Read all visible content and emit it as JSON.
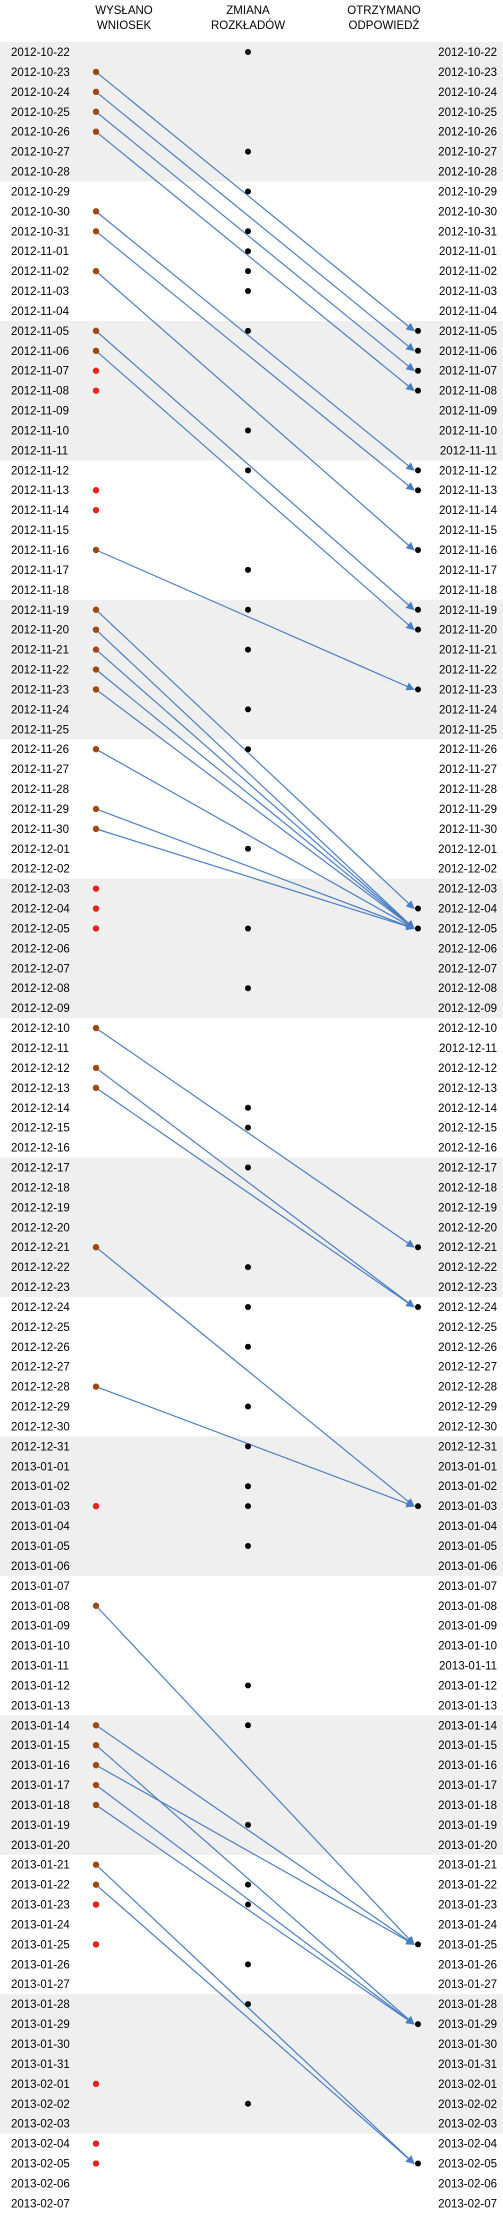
{
  "chart_data": {
    "type": "scatter",
    "headers": {
      "sent": [
        "WYSŁANO",
        "WNIOSEK"
      ],
      "change": [
        "ZMIANA",
        "ROZKŁADÓW"
      ],
      "received": [
        "OTRZYMANO",
        "ODPOWIEDŹ"
      ]
    },
    "start_date": "2012-10-22",
    "end_date": "2013-02-07",
    "shaded_weeks": [
      "2012-10-22",
      "2012-11-05",
      "2012-11-19",
      "2012-12-03",
      "2012-12-17",
      "2012-12-31",
      "2013-01-14",
      "2013-01-28"
    ],
    "sent_with_reply": [
      "2012-10-23",
      "2012-10-24",
      "2012-10-25",
      "2012-10-26",
      "2012-10-30",
      "2012-10-31",
      "2012-11-02",
      "2012-11-05",
      "2012-11-06",
      "2012-11-16",
      "2012-11-19",
      "2012-11-20",
      "2012-11-21",
      "2012-11-22",
      "2012-11-23",
      "2012-11-26",
      "2012-11-29",
      "2012-11-30",
      "2012-12-10",
      "2012-12-12",
      "2012-12-13",
      "2012-12-21",
      "2012-12-28",
      "2013-01-08",
      "2013-01-14",
      "2013-01-15",
      "2013-01-16",
      "2013-01-17",
      "2013-01-18",
      "2013-01-21",
      "2013-01-22"
    ],
    "sent_without_reply": [
      "2012-11-07",
      "2012-11-08",
      "2012-11-13",
      "2012-11-14",
      "2012-12-03",
      "2012-12-04",
      "2012-12-05",
      "2013-01-03",
      "2013-01-23",
      "2013-01-25",
      "2013-02-01",
      "2013-02-04",
      "2013-02-05"
    ],
    "schedule_changes": [
      "2012-10-22",
      "2012-10-27",
      "2012-10-29",
      "2012-10-31",
      "2012-11-01",
      "2012-11-02",
      "2012-11-03",
      "2012-11-05",
      "2012-11-10",
      "2012-11-12",
      "2012-11-17",
      "2012-11-19",
      "2012-11-21",
      "2012-11-24",
      "2012-11-26",
      "2012-12-01",
      "2012-12-05",
      "2012-12-08",
      "2012-12-14",
      "2012-12-15",
      "2012-12-17",
      "2012-12-22",
      "2012-12-24",
      "2012-12-26",
      "2012-12-29",
      "2012-12-31",
      "2013-01-02",
      "2013-01-03",
      "2013-01-05",
      "2013-01-12",
      "2013-01-14",
      "2013-01-19",
      "2013-01-22",
      "2013-01-23",
      "2013-01-26",
      "2013-01-28",
      "2013-02-02"
    ],
    "replies_received": [
      "2012-11-05",
      "2012-11-06",
      "2012-11-07",
      "2012-11-08",
      "2012-11-12",
      "2012-11-13",
      "2012-11-16",
      "2012-11-19",
      "2012-11-20",
      "2012-11-23",
      "2012-12-04",
      "2012-12-05",
      "2012-12-21",
      "2012-12-24",
      "2013-01-03",
      "2013-01-25",
      "2013-01-29",
      "2013-02-05"
    ],
    "links": [
      [
        "2012-10-23",
        "2012-11-05"
      ],
      [
        "2012-10-24",
        "2012-11-06"
      ],
      [
        "2012-10-25",
        "2012-11-07"
      ],
      [
        "2012-10-26",
        "2012-11-08"
      ],
      [
        "2012-10-30",
        "2012-11-12"
      ],
      [
        "2012-10-31",
        "2012-11-13"
      ],
      [
        "2012-11-02",
        "2012-11-16"
      ],
      [
        "2012-11-05",
        "2012-11-19"
      ],
      [
        "2012-11-06",
        "2012-11-20"
      ],
      [
        "2012-11-16",
        "2012-11-23"
      ],
      [
        "2012-11-19",
        "2012-12-04"
      ],
      [
        "2012-11-20",
        "2012-12-05"
      ],
      [
        "2012-11-21",
        "2012-12-05"
      ],
      [
        "2012-11-22",
        "2012-12-05"
      ],
      [
        "2012-11-23",
        "2012-12-05"
      ],
      [
        "2012-11-26",
        "2012-12-05"
      ],
      [
        "2012-11-29",
        "2012-12-05"
      ],
      [
        "2012-11-30",
        "2012-12-05"
      ],
      [
        "2012-12-10",
        "2012-12-21"
      ],
      [
        "2012-12-12",
        "2012-12-24"
      ],
      [
        "2012-12-13",
        "2012-12-24"
      ],
      [
        "2012-12-21",
        "2013-01-03"
      ],
      [
        "2012-12-28",
        "2013-01-03"
      ],
      [
        "2013-01-08",
        "2013-01-25"
      ],
      [
        "2013-01-14",
        "2013-01-25"
      ],
      [
        "2013-01-15",
        "2013-01-29"
      ],
      [
        "2013-01-16",
        "2013-01-25"
      ],
      [
        "2013-01-17",
        "2013-01-29"
      ],
      [
        "2013-01-18",
        "2013-01-29"
      ],
      [
        "2013-01-21",
        "2013-02-05"
      ],
      [
        "2013-01-22",
        "2013-02-05"
      ]
    ],
    "colors": {
      "sent_with_reply": "#9c4a12",
      "sent_without_reply": "#e8231c",
      "change": "#000000",
      "received": "#000000",
      "arrow": "#4a7ec4",
      "shade": "#efefef"
    }
  }
}
